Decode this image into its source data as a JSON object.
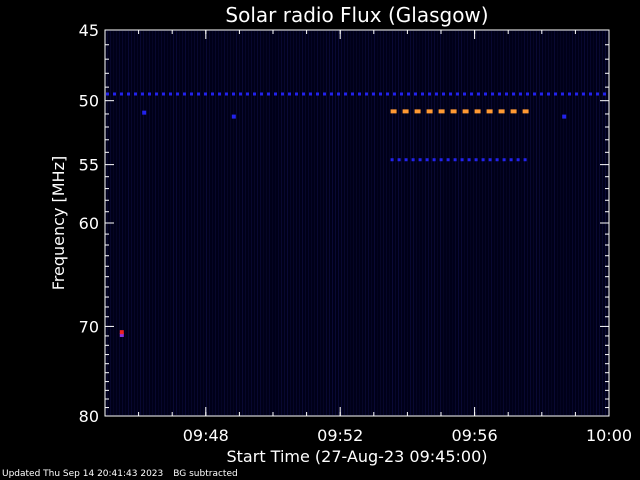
{
  "chart_data": {
    "type": "heatmap",
    "title": "Solar radio Flux (Glasgow)",
    "xlabel": "Start Time (27-Aug-23 09:45:00)",
    "ylabel": "Frequency [MHz]",
    "x_unit": "minutes",
    "xlim": [
      "09:45",
      "10:00"
    ],
    "ylim": [
      45,
      80
    ],
    "y_scale": "log",
    "y_ticks": [
      45,
      50,
      55,
      60,
      70,
      80
    ],
    "x_ticks": [
      "09:48",
      "09:52",
      "09:56",
      "10:00"
    ],
    "background_color": "#000000",
    "plot_color": "#000018",
    "features": [
      {
        "type": "band",
        "frequency": 49.5,
        "start": "09:45",
        "end": "10:00",
        "color": "#2222ee",
        "dash": true
      },
      {
        "type": "band",
        "frequency": 50.8,
        "start": "09:53:30",
        "end": "09:57:40",
        "color": "#ff9933",
        "dash": true
      },
      {
        "type": "band",
        "frequency": 54.6,
        "start": "09:53:30",
        "end": "09:57:40",
        "color": "#2222ee",
        "dash": true
      },
      {
        "type": "spot",
        "frequency": 70.9,
        "time": "09:45:30",
        "color": "#8833dd"
      },
      {
        "type": "spot",
        "frequency": 70.6,
        "time": "09:45:30",
        "color": "#ee2222"
      },
      {
        "type": "spot",
        "frequency": 50.9,
        "time": "09:46:10",
        "color": "#2222ee"
      },
      {
        "type": "spot",
        "frequency": 51.2,
        "time": "09:48:50",
        "color": "#2222ee"
      },
      {
        "type": "spot",
        "frequency": 51.2,
        "time": "09:58:40",
        "color": "#2222ee"
      }
    ]
  },
  "footer": {
    "updated": "Updated Thu Sep 14 20:41:43 2023",
    "note": "BG subtracted"
  }
}
